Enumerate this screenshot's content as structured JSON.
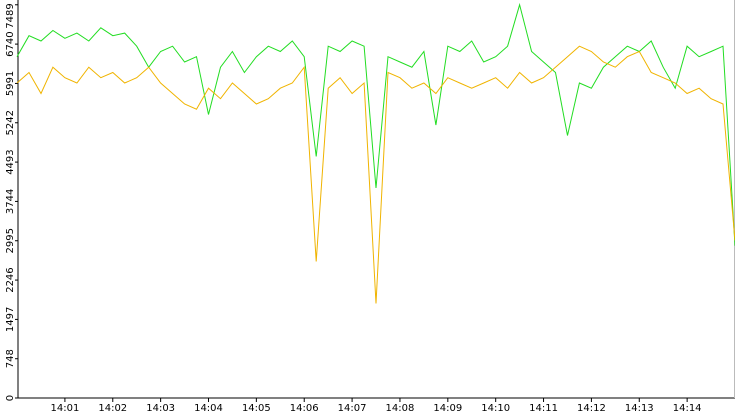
{
  "chart_data": {
    "type": "line",
    "x": [
      0,
      0.25,
      0.5,
      0.75,
      1,
      1.25,
      1.5,
      1.75,
      2,
      2.25,
      2.5,
      2.75,
      3,
      3.25,
      3.5,
      3.75,
      4,
      4.25,
      4.5,
      4.75,
      5,
      5.25,
      5.5,
      5.75,
      6,
      6.25,
      6.5,
      6.75,
      7,
      7.25,
      7.5,
      7.75,
      8,
      8.25,
      8.5,
      8.75,
      9,
      9.25,
      9.5,
      9.75,
      10,
      10.25,
      10.5,
      10.75,
      11,
      11.25,
      11.5,
      11.75,
      12,
      12.25,
      12.5,
      12.75,
      13,
      13.25,
      13.5,
      13.75,
      14,
      14.25,
      14.5,
      14.75,
      15
    ],
    "series": [
      {
        "color": "#22dd22",
        "values": [
          6500,
          6900,
          6800,
          7000,
          6850,
          6950,
          6800,
          7050,
          6900,
          6950,
          6700,
          6300,
          6600,
          6700,
          6400,
          6500,
          5400,
          6300,
          6600,
          6200,
          6500,
          6700,
          6600,
          6800,
          6500,
          4600,
          6700,
          6600,
          6800,
          6700,
          4000,
          6500,
          6400,
          6300,
          6600,
          5200,
          6700,
          6600,
          6800,
          6400,
          6500,
          6700,
          7489,
          6600,
          6400,
          6200,
          5000,
          6000,
          5900,
          6300,
          6500,
          6700,
          6600,
          6800,
          6300,
          5900,
          6700,
          6500,
          6600,
          6700,
          2900
        ]
      },
      {
        "color": "#f0b400",
        "values": [
          6000,
          6200,
          5800,
          6300,
          6100,
          6000,
          6300,
          6100,
          6200,
          6000,
          6100,
          6300,
          6000,
          5800,
          5600,
          5500,
          5900,
          5700,
          6000,
          5800,
          5600,
          5700,
          5900,
          6000,
          6300,
          2600,
          5900,
          6100,
          5800,
          6000,
          1800,
          6200,
          6100,
          5900,
          6000,
          5800,
          6100,
          6000,
          5900,
          6000,
          6100,
          5900,
          6200,
          6000,
          6100,
          6300,
          6500,
          6700,
          6600,
          6400,
          6300,
          6500,
          6600,
          6200,
          6100,
          6000,
          5800,
          5900,
          5700,
          5600,
          3000
        ]
      }
    ],
    "xlim": [
      0.02,
      15.0
    ],
    "xticks": [
      {
        "value": 1,
        "label": "14:01"
      },
      {
        "value": 2,
        "label": "14:02"
      },
      {
        "value": 3,
        "label": "14:03"
      },
      {
        "value": 4,
        "label": "14:04"
      },
      {
        "value": 5,
        "label": "14:05"
      },
      {
        "value": 6,
        "label": "14:06"
      },
      {
        "value": 7,
        "label": "14:07"
      },
      {
        "value": 8,
        "label": "14:08"
      },
      {
        "value": 9,
        "label": "14:09"
      },
      {
        "value": 10,
        "label": "14:10"
      },
      {
        "value": 11,
        "label": "14:11"
      },
      {
        "value": 12,
        "label": "14:12"
      },
      {
        "value": 13,
        "label": "14:13"
      },
      {
        "value": 14,
        "label": "14:14"
      }
    ],
    "ylim": [
      0,
      7580
    ],
    "yticks": [
      0,
      748,
      1497,
      2246,
      2995,
      3744,
      4493,
      5242,
      5991,
      6740,
      7489
    ]
  }
}
